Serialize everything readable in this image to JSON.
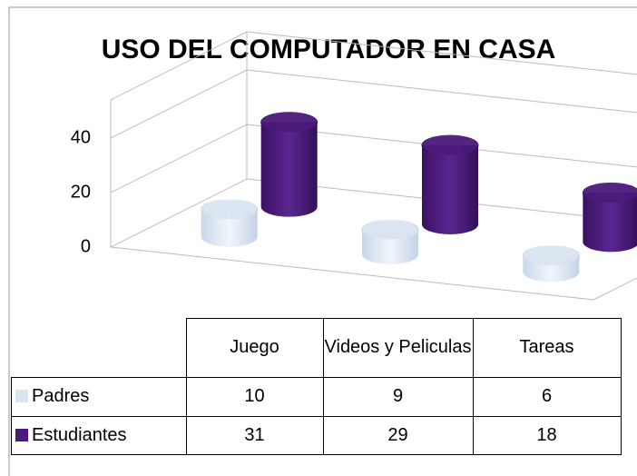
{
  "chart_data": {
    "type": "cylinder3d",
    "title": "USO DEL COMPUTADOR EN CASA",
    "categories": [
      "Juego",
      "Videos y Peliculas",
      "Tareas"
    ],
    "series": [
      {
        "name": "Padres",
        "color": "#dbe5f1",
        "values": [
          10,
          9,
          6
        ]
      },
      {
        "name": "Estudiantes",
        "color": "#4b1a7a",
        "values": [
          31,
          29,
          18
        ]
      }
    ],
    "ylim": [
      0,
      40
    ],
    "yticks": [
      0,
      20,
      40
    ],
    "grid": true,
    "data_table": true
  }
}
